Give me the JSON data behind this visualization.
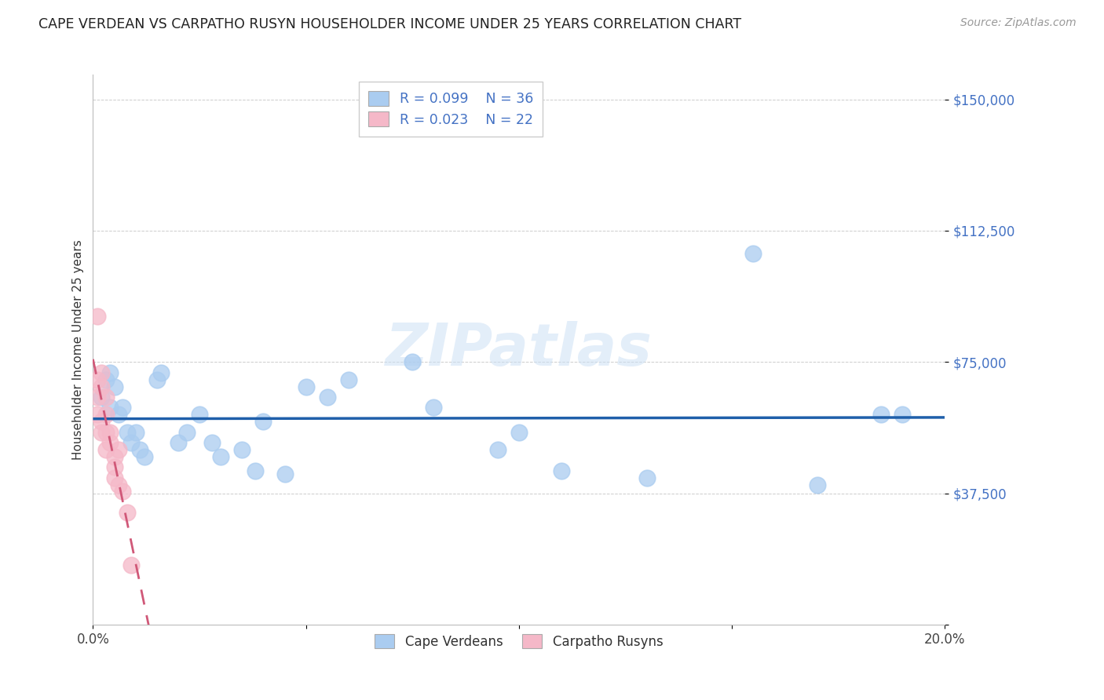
{
  "title": "CAPE VERDEAN VS CARPATHO RUSYN HOUSEHOLDER INCOME UNDER 25 YEARS CORRELATION CHART",
  "source": "Source: ZipAtlas.com",
  "ylabel": "Householder Income Under 25 years",
  "xlim": [
    0,
    0.2
  ],
  "ylim": [
    0,
    157000
  ],
  "yticks": [
    0,
    37500,
    75000,
    112500,
    150000
  ],
  "ytick_labels": [
    "",
    "$37,500",
    "$75,000",
    "$112,500",
    "$150,000"
  ],
  "xticks": [
    0,
    0.05,
    0.1,
    0.15,
    0.2
  ],
  "xtick_labels": [
    "0.0%",
    "",
    "",
    "",
    "20.0%"
  ],
  "watermark": "ZIPatlas",
  "blue_color": "#aaccf0",
  "pink_color": "#f5b8c8",
  "blue_line_color": "#1f5faa",
  "pink_line_color": "#d05878",
  "blue_tick_color": "#4472c4",
  "cape_verdean_x": [
    0.002,
    0.003,
    0.004,
    0.004,
    0.005,
    0.006,
    0.007,
    0.008,
    0.009,
    0.01,
    0.011,
    0.012,
    0.015,
    0.016,
    0.02,
    0.022,
    0.025,
    0.028,
    0.03,
    0.035,
    0.038,
    0.04,
    0.045,
    0.05,
    0.055,
    0.06,
    0.075,
    0.08,
    0.095,
    0.1,
    0.11,
    0.13,
    0.155,
    0.17,
    0.185,
    0.19
  ],
  "cape_verdean_y": [
    65000,
    70000,
    62000,
    72000,
    68000,
    60000,
    62000,
    55000,
    52000,
    55000,
    50000,
    48000,
    70000,
    72000,
    52000,
    55000,
    60000,
    52000,
    48000,
    50000,
    44000,
    58000,
    43000,
    68000,
    65000,
    70000,
    75000,
    62000,
    50000,
    55000,
    44000,
    42000,
    106000,
    40000,
    60000,
    60000
  ],
  "carpatho_rusyn_x": [
    0.001,
    0.001,
    0.001,
    0.001,
    0.002,
    0.002,
    0.002,
    0.002,
    0.003,
    0.003,
    0.003,
    0.003,
    0.004,
    0.004,
    0.005,
    0.005,
    0.005,
    0.006,
    0.006,
    0.007,
    0.008,
    0.009
  ],
  "carpatho_rusyn_y": [
    88000,
    70000,
    65000,
    60000,
    72000,
    68000,
    58000,
    55000,
    65000,
    60000,
    55000,
    50000,
    55000,
    52000,
    48000,
    45000,
    42000,
    50000,
    40000,
    38000,
    32000,
    17000
  ]
}
